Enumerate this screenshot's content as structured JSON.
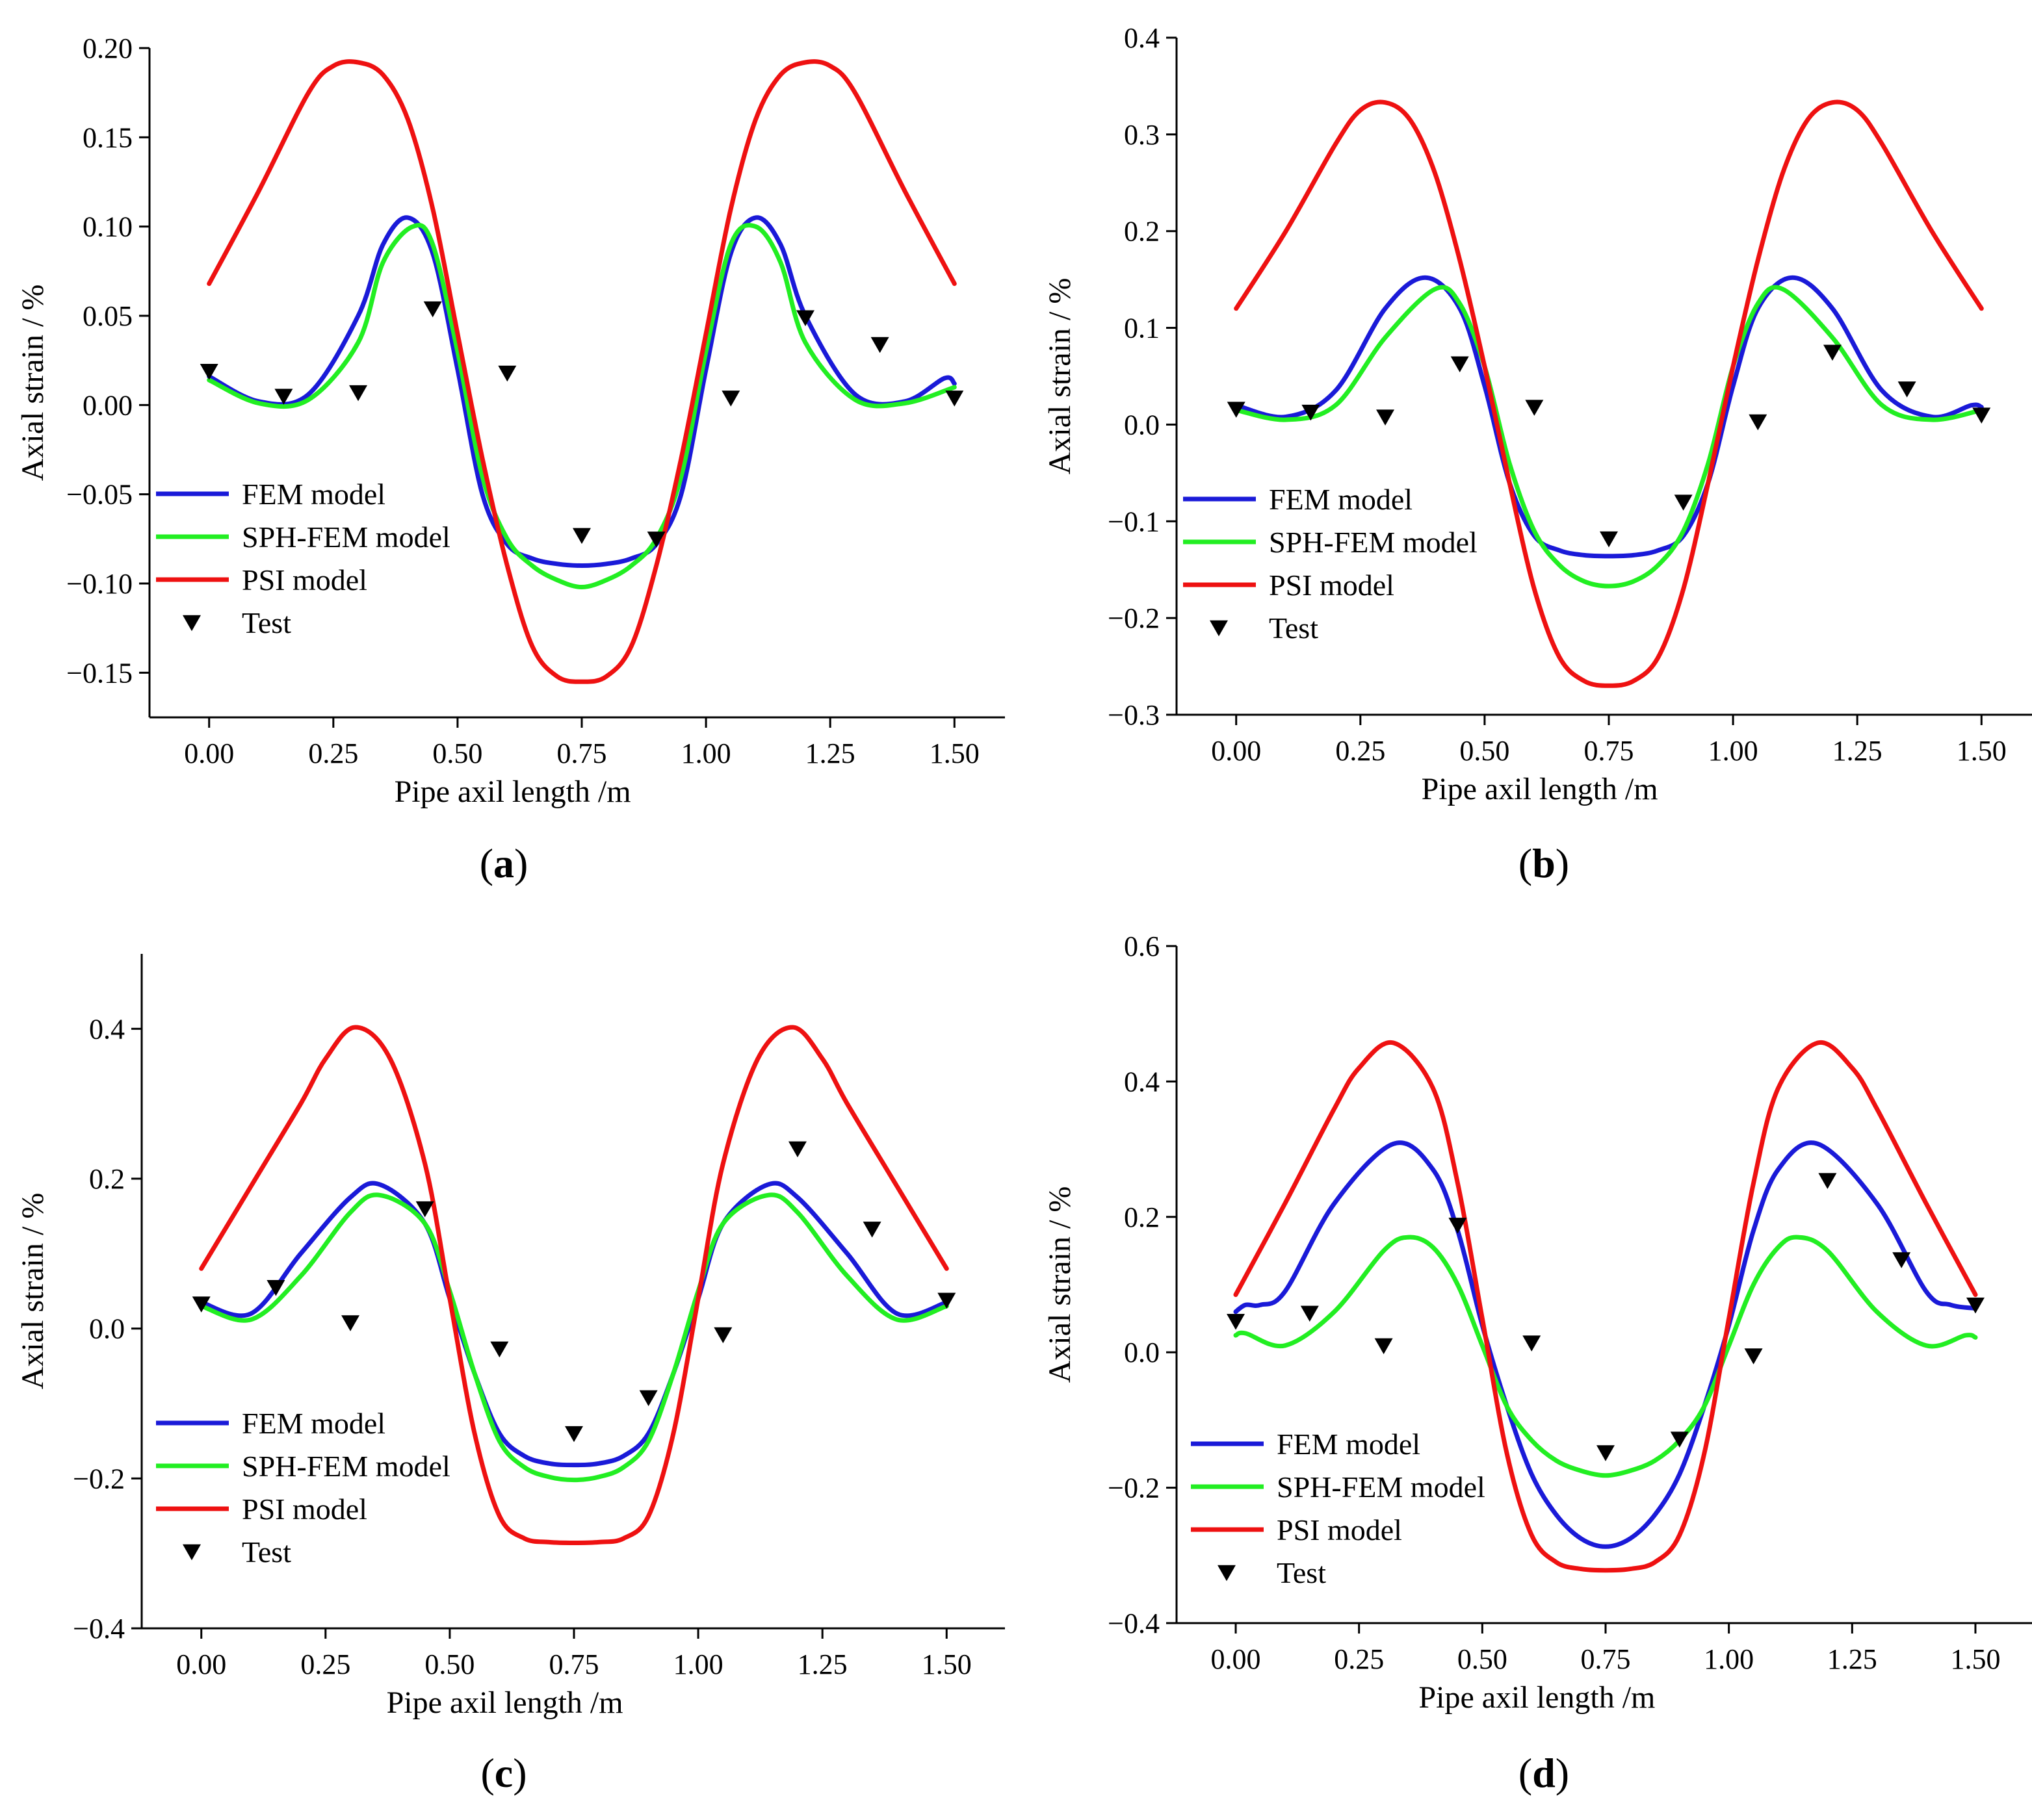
{
  "colors": {
    "fem": "#1a1ad8",
    "sph": "#22ee22",
    "psi": "#ee1111",
    "test": "#000000",
    "axis": "#000000"
  },
  "legend": {
    "fem": "FEM model",
    "sph": "SPH-FEM model",
    "psi": "PSI model",
    "test": "Test"
  },
  "chart_data": [
    {
      "id": "a",
      "type": "line",
      "caption": {
        "open": "(",
        "letter": "a",
        "close": ")"
      },
      "xlabel": "Pipe axil length /m",
      "ylabel": "Axial strain  / %",
      "xlim": [
        -0.12,
        1.62
      ],
      "ylim": [
        -0.175,
        0.2
      ],
      "xticks": [
        "0.00",
        "0.25",
        "0.50",
        "0.75",
        "1.00",
        "1.25",
        "1.50"
      ],
      "xtick_values": [
        0,
        0.25,
        0.5,
        0.75,
        1.0,
        1.25,
        1.5
      ],
      "yticks": [
        "0.20",
        "0.15",
        "0.10",
        "0.05",
        "0.00",
        "−0.05",
        "−0.10",
        "−0.15"
      ],
      "ytick_values": [
        0.2,
        0.15,
        0.1,
        0.05,
        0,
        -0.05,
        -0.1,
        -0.15
      ],
      "series": [
        {
          "name": "FEM model",
          "key": "fem",
          "x": [
            0,
            0.1,
            0.2,
            0.3,
            0.35,
            0.4,
            0.45,
            0.5,
            0.55,
            0.6,
            0.65,
            0.7,
            0.75,
            0.8,
            0.85,
            0.9,
            0.95,
            1.0,
            1.05,
            1.1,
            1.15,
            1.2,
            1.3,
            1.4,
            1.48,
            1.5
          ],
          "y": [
            0.016,
            0.002,
            0.006,
            0.05,
            0.09,
            0.105,
            0.085,
            0.02,
            -0.05,
            -0.078,
            -0.086,
            -0.089,
            -0.09,
            -0.089,
            -0.086,
            -0.078,
            -0.05,
            0.02,
            0.085,
            0.105,
            0.09,
            0.05,
            0.006,
            0.002,
            0.015,
            0.012
          ]
        },
        {
          "name": "SPH-FEM model",
          "key": "sph",
          "x": [
            0,
            0.1,
            0.2,
            0.3,
            0.35,
            0.41,
            0.45,
            0.5,
            0.55,
            0.6,
            0.65,
            0.7,
            0.75,
            0.8,
            0.85,
            0.9,
            0.95,
            1.0,
            1.05,
            1.1,
            1.15,
            1.2,
            1.3,
            1.4,
            1.5
          ],
          "y": [
            0.014,
            0.001,
            0.003,
            0.035,
            0.08,
            0.1,
            0.09,
            0.03,
            -0.04,
            -0.075,
            -0.09,
            -0.098,
            -0.102,
            -0.098,
            -0.09,
            -0.075,
            -0.04,
            0.03,
            0.09,
            0.1,
            0.08,
            0.035,
            0.003,
            0.001,
            0.01
          ]
        },
        {
          "name": "PSI model",
          "key": "psi",
          "x": [
            0,
            0.1,
            0.2,
            0.25,
            0.3,
            0.35,
            0.4,
            0.45,
            0.5,
            0.55,
            0.6,
            0.65,
            0.7,
            0.75,
            0.8,
            0.85,
            0.9,
            0.95,
            1.0,
            1.05,
            1.1,
            1.15,
            1.2,
            1.25,
            1.3,
            1.4,
            1.5
          ],
          "y": [
            0.068,
            0.12,
            0.175,
            0.19,
            0.192,
            0.185,
            0.16,
            0.11,
            0.04,
            -0.03,
            -0.09,
            -0.135,
            -0.152,
            -0.155,
            -0.152,
            -0.135,
            -0.09,
            -0.03,
            0.04,
            0.11,
            0.16,
            0.185,
            0.192,
            0.19,
            0.175,
            0.12,
            0.068
          ]
        },
        {
          "name": "Test",
          "key": "test",
          "kind": "scatter",
          "x": [
            0,
            0.15,
            0.3,
            0.45,
            0.6,
            0.75,
            0.9,
            1.05,
            1.2,
            1.35,
            1.5
          ],
          "y": [
            0.019,
            0.005,
            0.007,
            0.054,
            0.018,
            -0.073,
            -0.075,
            0.004,
            0.049,
            0.034,
            0.004
          ]
        }
      ]
    },
    {
      "id": "b",
      "type": "line",
      "caption": {
        "open": "(",
        "letter": "b",
        "close": ")"
      },
      "xlabel": "Pipe axil length /m",
      "ylabel": "Axial strain  / %",
      "xlim": [
        -0.12,
        1.62
      ],
      "ylim": [
        -0.3,
        0.4
      ],
      "xticks": [
        "0.00",
        "0.25",
        "0.50",
        "0.75",
        "1.00",
        "1.25",
        "1.50"
      ],
      "xtick_values": [
        0,
        0.25,
        0.5,
        0.75,
        1.0,
        1.25,
        1.5
      ],
      "yticks": [
        "0.4",
        "0.3",
        "0.2",
        "0.1",
        "0.0",
        "−0.1",
        "−0.2",
        "−0.3"
      ],
      "ytick_values": [
        0.4,
        0.3,
        0.2,
        0.1,
        0,
        -0.1,
        -0.2,
        -0.3
      ],
      "series": [
        {
          "name": "FEM model",
          "key": "fem",
          "x": [
            0,
            0.1,
            0.2,
            0.3,
            0.38,
            0.45,
            0.5,
            0.55,
            0.6,
            0.65,
            0.7,
            0.75,
            0.8,
            0.85,
            0.9,
            0.95,
            1.0,
            1.05,
            1.12,
            1.2,
            1.3,
            1.4,
            1.48,
            1.5
          ],
          "y": [
            0.02,
            0.008,
            0.035,
            0.12,
            0.152,
            0.12,
            0.04,
            -0.06,
            -0.115,
            -0.13,
            -0.135,
            -0.136,
            -0.135,
            -0.13,
            -0.115,
            -0.06,
            0.04,
            0.12,
            0.152,
            0.12,
            0.035,
            0.008,
            0.02,
            0.018
          ]
        },
        {
          "name": "SPH-FEM model",
          "key": "sph",
          "x": [
            0,
            0.1,
            0.2,
            0.3,
            0.4,
            0.45,
            0.5,
            0.55,
            0.6,
            0.65,
            0.7,
            0.75,
            0.8,
            0.85,
            0.9,
            0.95,
            1.0,
            1.05,
            1.1,
            1.2,
            1.3,
            1.4,
            1.5
          ],
          "y": [
            0.015,
            0.005,
            0.02,
            0.09,
            0.14,
            0.125,
            0.06,
            -0.04,
            -0.11,
            -0.145,
            -0.162,
            -0.167,
            -0.162,
            -0.145,
            -0.11,
            -0.04,
            0.06,
            0.125,
            0.14,
            0.09,
            0.02,
            0.005,
            0.015
          ]
        },
        {
          "name": "PSI model",
          "key": "psi",
          "x": [
            0,
            0.1,
            0.2,
            0.25,
            0.3,
            0.35,
            0.4,
            0.45,
            0.5,
            0.55,
            0.6,
            0.65,
            0.7,
            0.75,
            0.8,
            0.85,
            0.9,
            0.95,
            1.0,
            1.05,
            1.1,
            1.15,
            1.2,
            1.25,
            1.3,
            1.4,
            1.5
          ],
          "y": [
            0.12,
            0.2,
            0.29,
            0.325,
            0.333,
            0.315,
            0.26,
            0.17,
            0.06,
            -0.06,
            -0.17,
            -0.24,
            -0.265,
            -0.27,
            -0.265,
            -0.24,
            -0.17,
            -0.06,
            0.06,
            0.17,
            0.26,
            0.315,
            0.333,
            0.325,
            0.29,
            0.2,
            0.12
          ]
        },
        {
          "name": "Test",
          "key": "test",
          "kind": "scatter",
          "x": [
            0,
            0.15,
            0.3,
            0.45,
            0.6,
            0.75,
            0.9,
            1.05,
            1.2,
            1.35,
            1.5
          ],
          "y": [
            0.016,
            0.013,
            0.008,
            0.063,
            0.018,
            -0.118,
            -0.08,
            0.003,
            0.075,
            0.037,
            0.01
          ]
        }
      ]
    },
    {
      "id": "c",
      "type": "line",
      "caption": {
        "open": "(",
        "letter": "c",
        "close": ")"
      },
      "xlabel": "Pipe axil length /m",
      "ylabel": "Axial strain  / %",
      "xlim": [
        -0.12,
        1.62
      ],
      "ylim": [
        -0.4,
        0.5
      ],
      "xticks": [
        "0.00",
        "0.25",
        "0.50",
        "0.75",
        "1.00",
        "1.25",
        "1.50"
      ],
      "xtick_values": [
        0,
        0.25,
        0.5,
        0.75,
        1.0,
        1.25,
        1.5
      ],
      "yticks": [
        "0.4",
        "0.2",
        "0.0",
        "−0.2",
        "−0.4"
      ],
      "ytick_values": [
        0.4,
        0.2,
        0,
        -0.2,
        -0.4
      ],
      "series": [
        {
          "name": "FEM model",
          "key": "fem",
          "x": [
            0,
            0.1,
            0.2,
            0.3,
            0.36,
            0.45,
            0.5,
            0.55,
            0.6,
            0.65,
            0.7,
            0.75,
            0.8,
            0.85,
            0.9,
            0.95,
            1.0,
            1.05,
            1.14,
            1.2,
            1.3,
            1.4,
            1.5
          ],
          "y": [
            0.035,
            0.02,
            0.1,
            0.175,
            0.192,
            0.14,
            0.04,
            -0.06,
            -0.14,
            -0.17,
            -0.18,
            -0.182,
            -0.18,
            -0.17,
            -0.14,
            -0.06,
            0.04,
            0.14,
            0.192,
            0.175,
            0.1,
            0.02,
            0.035
          ]
        },
        {
          "name": "SPH-FEM model",
          "key": "sph",
          "x": [
            0,
            0.1,
            0.2,
            0.3,
            0.36,
            0.45,
            0.5,
            0.55,
            0.6,
            0.65,
            0.7,
            0.75,
            0.8,
            0.85,
            0.9,
            0.95,
            1.0,
            1.05,
            1.14,
            1.2,
            1.3,
            1.4,
            1.5
          ],
          "y": [
            0.03,
            0.012,
            0.07,
            0.155,
            0.178,
            0.14,
            0.05,
            -0.06,
            -0.15,
            -0.185,
            -0.198,
            -0.202,
            -0.198,
            -0.185,
            -0.15,
            -0.06,
            0.05,
            0.14,
            0.178,
            0.155,
            0.07,
            0.012,
            0.03
          ]
        },
        {
          "name": "PSI model",
          "key": "psi",
          "x": [
            0,
            0.1,
            0.2,
            0.25,
            0.31,
            0.38,
            0.45,
            0.5,
            0.55,
            0.6,
            0.65,
            0.7,
            0.75,
            0.8,
            0.85,
            0.9,
            0.95,
            1.0,
            1.05,
            1.12,
            1.19,
            1.25,
            1.3,
            1.4,
            1.5
          ],
          "y": [
            0.08,
            0.19,
            0.3,
            0.36,
            0.402,
            0.36,
            0.22,
            0.04,
            -0.14,
            -0.25,
            -0.28,
            -0.285,
            -0.286,
            -0.285,
            -0.28,
            -0.25,
            -0.14,
            0.04,
            0.22,
            0.36,
            0.402,
            0.36,
            0.3,
            0.19,
            0.08
          ]
        },
        {
          "name": "Test",
          "key": "test",
          "kind": "scatter",
          "x": [
            0,
            0.15,
            0.3,
            0.45,
            0.6,
            0.75,
            0.9,
            1.05,
            1.2,
            1.35,
            1.5
          ],
          "y": [
            0.033,
            0.055,
            0.008,
            0.16,
            -0.027,
            -0.14,
            -0.092,
            -0.008,
            0.24,
            0.133,
            0.038
          ]
        }
      ]
    },
    {
      "id": "d",
      "type": "line",
      "caption": {
        "open": "(",
        "letter": "d",
        "close": ")"
      },
      "xlabel": "Pipe axil length /m",
      "ylabel": "Axial strain  / %",
      "xlim": [
        -0.12,
        1.62
      ],
      "ylim": [
        -0.4,
        0.6
      ],
      "xticks": [
        "0.00",
        "0.25",
        "0.50",
        "0.75",
        "1.00",
        "1.25",
        "1.50"
      ],
      "xtick_values": [
        0,
        0.25,
        0.5,
        0.75,
        1.0,
        1.25,
        1.5
      ],
      "yticks": [
        "0.6",
        "0.4",
        "0.2",
        "0.0",
        "−0.2",
        "−0.4"
      ],
      "ytick_values": [
        0.6,
        0.4,
        0.2,
        0,
        -0.2,
        -0.4
      ],
      "series": [
        {
          "name": "FEM model",
          "key": "fem",
          "x": [
            0,
            0.02,
            0.05,
            0.1,
            0.2,
            0.32,
            0.4,
            0.45,
            0.5,
            0.55,
            0.6,
            0.65,
            0.7,
            0.75,
            0.8,
            0.85,
            0.9,
            0.95,
            1.0,
            1.05,
            1.1,
            1.18,
            1.3,
            1.4,
            1.45,
            1.5
          ],
          "y": [
            0.06,
            0.07,
            0.07,
            0.09,
            0.22,
            0.308,
            0.27,
            0.18,
            0.04,
            -0.08,
            -0.18,
            -0.24,
            -0.275,
            -0.287,
            -0.275,
            -0.24,
            -0.18,
            -0.08,
            0.04,
            0.18,
            0.27,
            0.308,
            0.22,
            0.09,
            0.07,
            0.065
          ]
        },
        {
          "name": "SPH-FEM model",
          "key": "sph",
          "x": [
            0,
            0.02,
            0.1,
            0.2,
            0.3,
            0.35,
            0.4,
            0.45,
            0.5,
            0.55,
            0.6,
            0.65,
            0.7,
            0.75,
            0.8,
            0.85,
            0.9,
            0.95,
            1.0,
            1.05,
            1.1,
            1.14,
            1.2,
            1.3,
            1.4,
            1.48,
            1.5
          ],
          "y": [
            0.025,
            0.028,
            0.01,
            0.06,
            0.15,
            0.17,
            0.155,
            0.1,
            0.01,
            -0.08,
            -0.13,
            -0.16,
            -0.175,
            -0.182,
            -0.175,
            -0.16,
            -0.13,
            -0.08,
            0.01,
            0.1,
            0.155,
            0.17,
            0.15,
            0.06,
            0.01,
            0.025,
            0.022
          ]
        },
        {
          "name": "PSI model",
          "key": "psi",
          "x": [
            0,
            0.1,
            0.2,
            0.25,
            0.32,
            0.4,
            0.45,
            0.5,
            0.55,
            0.6,
            0.65,
            0.7,
            0.75,
            0.8,
            0.85,
            0.9,
            0.95,
            1.0,
            1.05,
            1.1,
            1.18,
            1.25,
            1.3,
            1.4,
            1.5
          ],
          "y": [
            0.085,
            0.22,
            0.36,
            0.42,
            0.457,
            0.39,
            0.25,
            0.05,
            -0.15,
            -0.27,
            -0.31,
            -0.32,
            -0.322,
            -0.32,
            -0.31,
            -0.27,
            -0.15,
            0.05,
            0.25,
            0.39,
            0.457,
            0.42,
            0.36,
            0.22,
            0.085
          ]
        },
        {
          "name": "Test",
          "key": "test",
          "kind": "scatter",
          "x": [
            0,
            0.15,
            0.3,
            0.45,
            0.6,
            0.75,
            0.9,
            1.05,
            1.2,
            1.35,
            1.5
          ],
          "y": [
            0.046,
            0.058,
            0.01,
            0.188,
            0.014,
            -0.148,
            -0.128,
            -0.005,
            0.254,
            0.137,
            0.07
          ]
        }
      ]
    }
  ]
}
